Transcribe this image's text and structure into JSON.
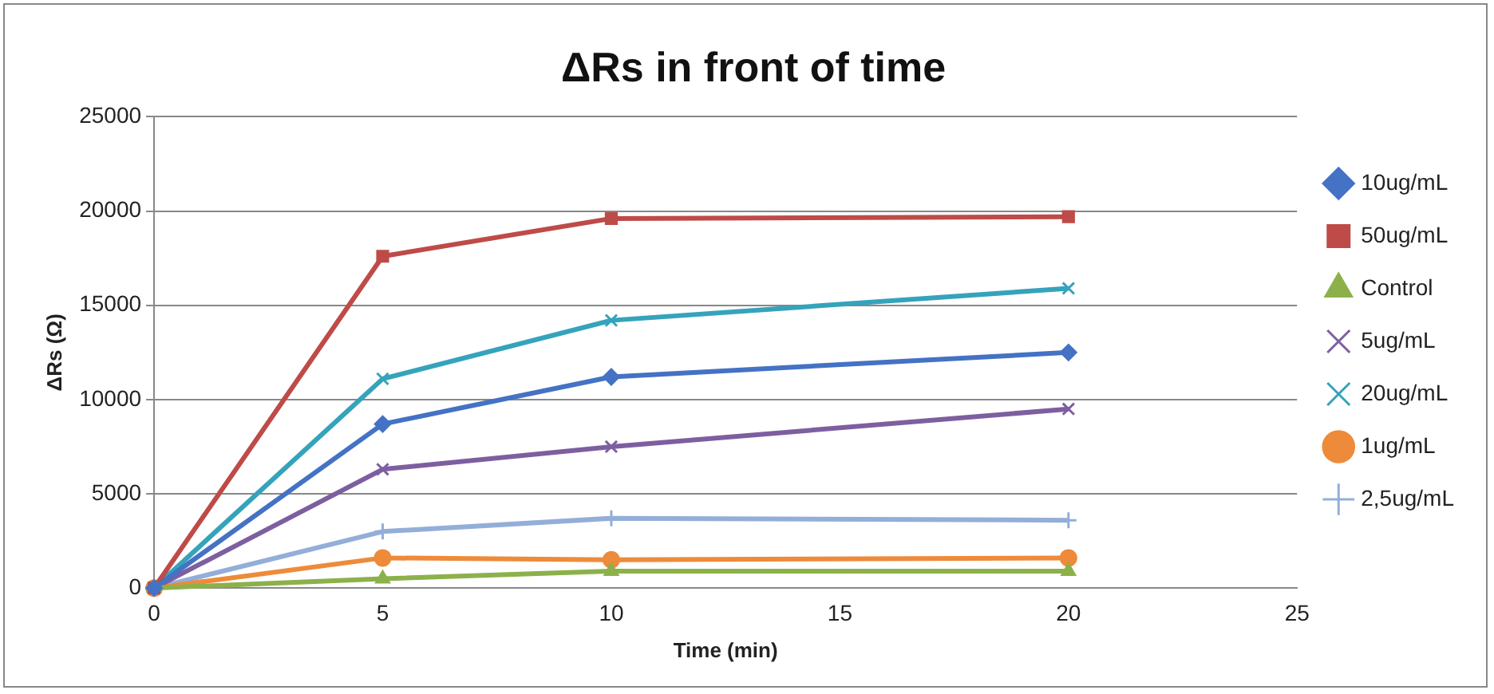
{
  "chart_data": {
    "type": "line",
    "title": "ΔRs in front of time",
    "xlabel": "Time (min)",
    "ylabel": "ΔRs (Ω)",
    "x": [
      0,
      5,
      10,
      20
    ],
    "xlim": [
      0,
      25
    ],
    "xticks": [
      0,
      5,
      10,
      15,
      20,
      25
    ],
    "ylim": [
      0,
      25000
    ],
    "yticks": [
      0,
      5000,
      10000,
      15000,
      20000,
      25000
    ],
    "grid": "y",
    "legend": "right",
    "series": [
      {
        "name": "10ug/mL",
        "color": "#4472c4",
        "marker": "diamond",
        "values": [
          0,
          8700,
          11200,
          12500
        ]
      },
      {
        "name": "50ug/mL",
        "color": "#be4b48",
        "marker": "square",
        "values": [
          0,
          17600,
          19600,
          19700
        ]
      },
      {
        "name": "Control",
        "color": "#8cb14a",
        "marker": "triangle",
        "values": [
          0,
          500,
          900,
          900
        ]
      },
      {
        "name": "5ug/mL",
        "color": "#7d5fa0",
        "marker": "cross",
        "values": [
          0,
          6300,
          7500,
          9500
        ]
      },
      {
        "name": "20ug/mL",
        "color": "#35a3bb",
        "marker": "cross",
        "values": [
          0,
          11100,
          14200,
          15900
        ]
      },
      {
        "name": "1ug/mL",
        "color": "#ed8b3b",
        "marker": "circle",
        "values": [
          0,
          1600,
          1500,
          1600
        ]
      },
      {
        "name": "2,5ug/mL",
        "color": "#93aed8",
        "marker": "plus",
        "values": [
          0,
          3000,
          3700,
          3600
        ]
      }
    ]
  }
}
